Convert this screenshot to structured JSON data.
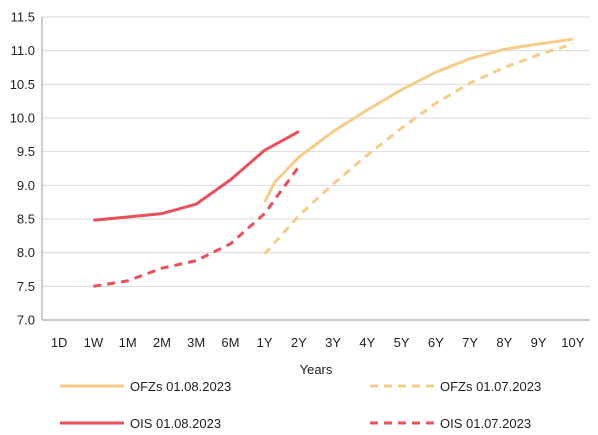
{
  "chart_data": {
    "type": "line",
    "categories": [
      "1D",
      "1W",
      "1M",
      "2M",
      "3M",
      "6M",
      "1Y",
      "2Y",
      "3Y",
      "4Y",
      "5Y",
      "6Y",
      "7Y",
      "8Y",
      "9Y",
      "10Y"
    ],
    "xlabel": "Years",
    "ylabel": "",
    "ylim": [
      7.0,
      11.5
    ],
    "yticks": [
      "7.0",
      "7.5",
      "8.0",
      "8.5",
      "9.0",
      "9.5",
      "10.0",
      "10.5",
      "11.0",
      "11.5"
    ],
    "grid": "horizontal",
    "legend_position": "bottom",
    "series": [
      {
        "name": "OFZs 01.08.2023",
        "color": "#F7CC8A",
        "dash": "solid",
        "points": [
          [
            6,
            8.75
          ],
          [
            6.3,
            9.05
          ],
          [
            7,
            9.42
          ],
          [
            8,
            9.8
          ],
          [
            9,
            10.12
          ],
          [
            10,
            10.42
          ],
          [
            11,
            10.68
          ],
          [
            12,
            10.88
          ],
          [
            13,
            11.02
          ],
          [
            14,
            11.1
          ],
          [
            15,
            11.17
          ]
        ]
      },
      {
        "name": "OFZs 01.07.2023",
        "color": "#F7CC8A",
        "dash": "dashed",
        "points": [
          [
            6,
            7.98
          ],
          [
            7,
            8.55
          ],
          [
            8,
            9.02
          ],
          [
            9,
            9.45
          ],
          [
            10,
            9.85
          ],
          [
            11,
            10.22
          ],
          [
            12,
            10.52
          ],
          [
            13,
            10.75
          ],
          [
            14,
            10.94
          ],
          [
            15,
            11.1
          ]
        ]
      },
      {
        "name": "OIS 01.08.2023",
        "color": "#E8505B",
        "dash": "solid",
        "points": [
          [
            1,
            8.48
          ],
          [
            2,
            8.53
          ],
          [
            3,
            8.58
          ],
          [
            4,
            8.72
          ],
          [
            5,
            9.08
          ],
          [
            6,
            9.52
          ],
          [
            7,
            9.8
          ]
        ]
      },
      {
        "name": "OIS 01.07.2023",
        "color": "#E8505B",
        "dash": "dashed",
        "points": [
          [
            1,
            7.5
          ],
          [
            2,
            7.58
          ],
          [
            3,
            7.77
          ],
          [
            4,
            7.88
          ],
          [
            5,
            8.13
          ],
          [
            6,
            8.58
          ],
          [
            7,
            9.28
          ]
        ]
      }
    ]
  }
}
